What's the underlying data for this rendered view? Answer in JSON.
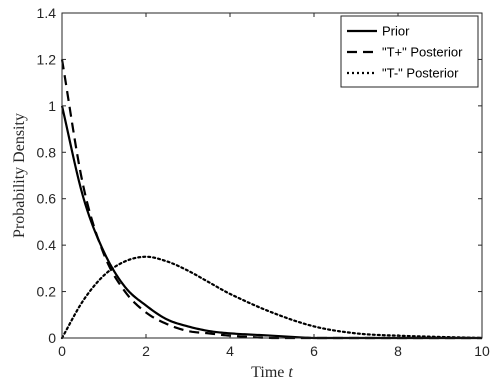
{
  "chart_data": {
    "type": "line",
    "title": "",
    "xlabel_main": "Time ",
    "xlabel_var": "t",
    "ylabel": "Probability Density",
    "xlim": [
      0,
      10
    ],
    "ylim": [
      0,
      1.4
    ],
    "xticks": [
      0,
      2,
      4,
      6,
      8,
      10
    ],
    "yticks": [
      0,
      0.2,
      0.4,
      0.6,
      0.8,
      1,
      1.2,
      1.4
    ],
    "xtick_labels": [
      "0",
      "2",
      "4",
      "6",
      "8",
      "10"
    ],
    "ytick_labels": [
      "0",
      "0.2",
      "0.4",
      "0.6",
      "0.8",
      "1",
      "1.2",
      "1.4"
    ],
    "grid": false,
    "legend_position": "top-right",
    "x": [
      0,
      0.5,
      1,
      1.5,
      2,
      2.5,
      3,
      3.5,
      4,
      5,
      6,
      7,
      8,
      10
    ],
    "series": [
      {
        "name": "Prior",
        "style": "solid",
        "color": "#000000",
        "values": [
          1.0,
          0.61,
          0.37,
          0.22,
          0.14,
          0.08,
          0.05,
          0.03,
          0.02,
          0.01,
          0.0,
          0.0,
          0.0,
          0.0
        ]
      },
      {
        "name": "\"T+\" Posterior",
        "style": "dashed",
        "color": "#000000",
        "values": [
          1.2,
          0.66,
          0.36,
          0.2,
          0.11,
          0.06,
          0.03,
          0.02,
          0.01,
          0.0,
          0.0,
          0.0,
          0.0,
          0.0
        ]
      },
      {
        "name": "\"T-\" Posterior",
        "style": "dotted",
        "color": "#000000",
        "values": [
          0.0,
          0.16,
          0.27,
          0.33,
          0.35,
          0.33,
          0.29,
          0.24,
          0.19,
          0.11,
          0.05,
          0.02,
          0.01,
          0.0
        ]
      }
    ]
  }
}
